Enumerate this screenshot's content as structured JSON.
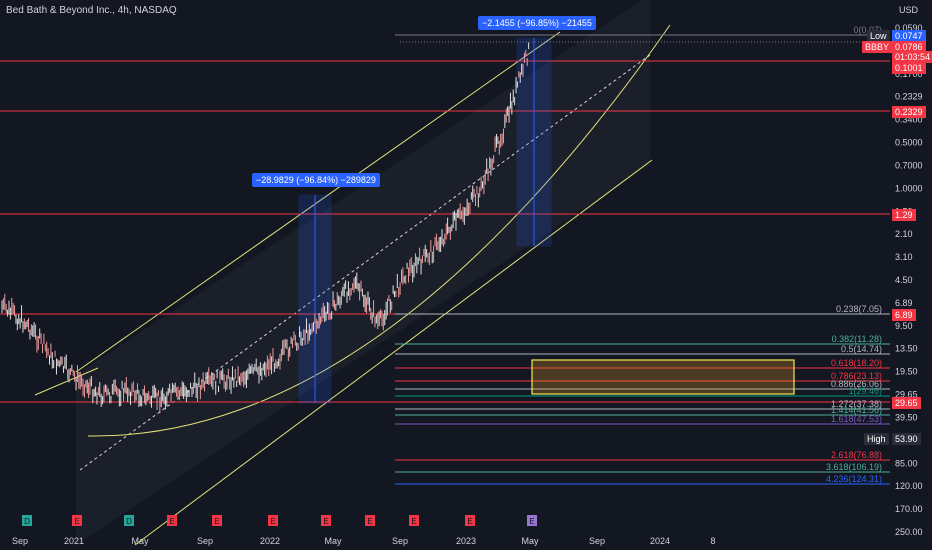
{
  "title": {
    "symbol_name": "Bed Bath & Beyond Inc., 4h, NASDAQ"
  },
  "currency_label": "USD",
  "colors": {
    "background": "#131722",
    "axis_text": "#d1d4dc",
    "hline": "#f23645",
    "channel": "#e6e07a",
    "box": "#f5e64c",
    "measure": "#2962ff"
  },
  "price_labels": {
    "low_label": "Low",
    "low_value": "0.0747",
    "symbol_badge": "BBBY",
    "symbol_price": "0.0786",
    "countdown": "01:03:54",
    "level_1": "0.1001",
    "level_2": "0.2329",
    "level_3": "1.29",
    "level_4": "6.89",
    "level_5": "29.65",
    "high_label": "High",
    "high_value": "53.90"
  },
  "measure_tags": [
    {
      "text": "−28.9829 (−96.84%) −289829"
    },
    {
      "text": "−2.1455 (−96.85%) −21455"
    }
  ],
  "chart_data": {
    "type": "candlestick",
    "y_scale": "log-inverted",
    "y_ticks": [
      "0.0590",
      "0.1001",
      "0.1700",
      "0.2329",
      "0.3400",
      "0.5000",
      "0.7000",
      "1.0000",
      "1.50",
      "2.10",
      "3.10",
      "4.50",
      "6.89",
      "9.50",
      "13.50",
      "19.50",
      "29.65",
      "39.50",
      "53.90",
      "85.00",
      "120.00",
      "170.00",
      "250.00"
    ],
    "x_ticks": [
      "Sep",
      "2021",
      "May",
      "Sep",
      "2022",
      "May",
      "Sep",
      "2023",
      "May",
      "Sep",
      "2024",
      "8"
    ],
    "fib_levels": [
      {
        "label": "0(0.07)",
        "color": "#787b86"
      },
      {
        "label": "0.238(7.05)",
        "color": "#b2b5be"
      },
      {
        "label": "0.382(11.28)",
        "color": "#4caf9a"
      },
      {
        "label": "0.5(14.74)",
        "color": "#b2b5be"
      },
      {
        "label": "0.618(18.20)",
        "color": "#f23645"
      },
      {
        "label": "0.786(23.13)",
        "color": "#f23645"
      },
      {
        "label": "0.886(26.06)",
        "color": "#b2b5be"
      },
      {
        "label": "1(29.46)",
        "color": "#089981"
      },
      {
        "label": "1.272(37.38)",
        "color": "#b2b5be"
      },
      {
        "label": "1.414(41.56)",
        "color": "#4caf9a"
      },
      {
        "label": "1.618(47.53)",
        "color": "#7e57c2"
      },
      {
        "label": "2.618(76.88)",
        "color": "#f23645"
      },
      {
        "label": "3.618(106.19)",
        "color": "#4caf9a"
      },
      {
        "label": "4.236(124.31)",
        "color": "#2962ff"
      }
    ],
    "events": [
      "D",
      "E",
      "D",
      "E",
      "E",
      "E",
      "E",
      "E",
      "E",
      "E",
      "E",
      "E"
    ],
    "price_path": [
      6,
      8,
      14,
      20,
      26,
      24,
      28,
      25,
      22,
      20,
      18,
      14,
      9.5,
      6.5,
      4,
      8,
      3.5,
      2.5,
      1.5,
      0.9,
      0.3,
      0.08
    ]
  }
}
